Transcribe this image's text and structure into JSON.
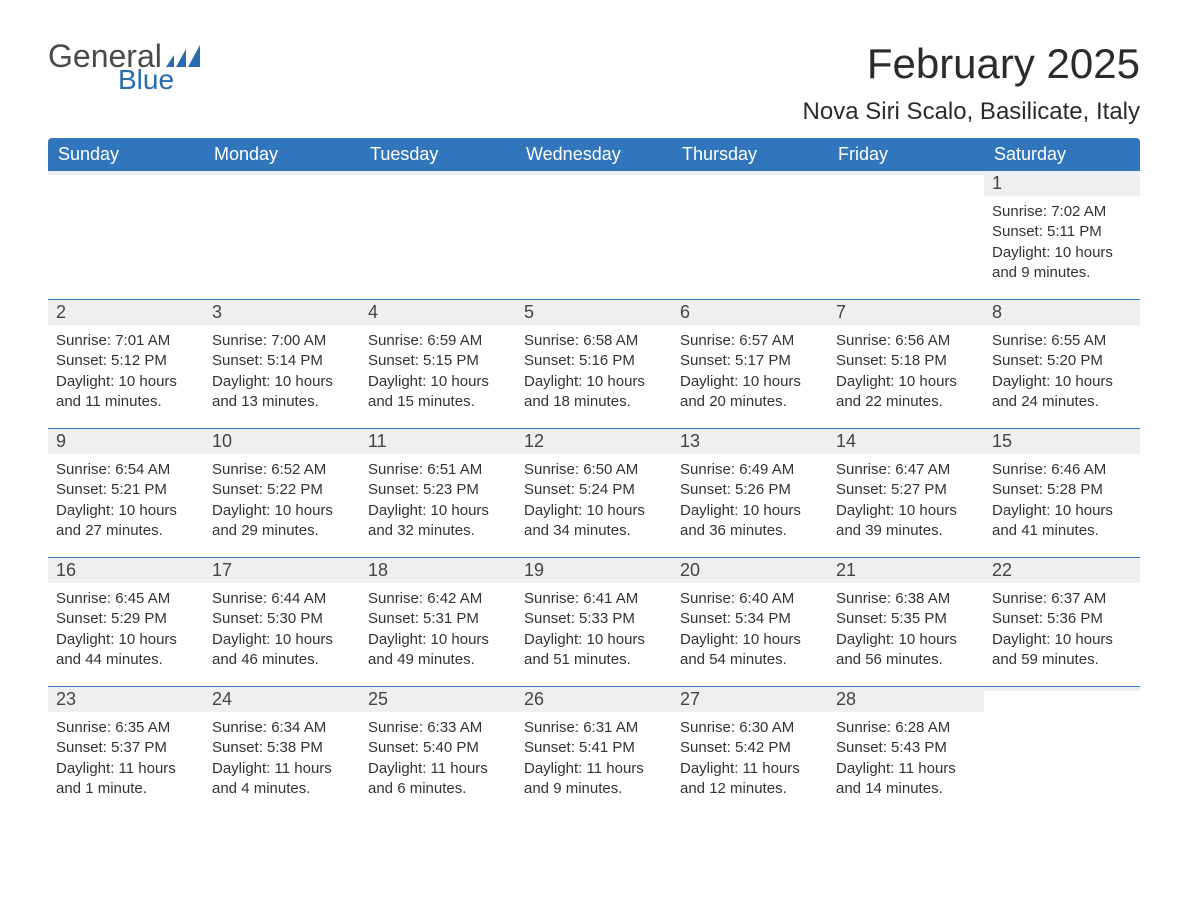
{
  "brand": {
    "text1": "General",
    "text2": "Blue",
    "icon_color": "#2a6bb0",
    "text1_color": "#4a4a4a",
    "text2_color": "#2a6bb0"
  },
  "title": "February 2025",
  "location": "Nova Siri Scalo, Basilicate, Italy",
  "colors": {
    "header_bg": "#3176bd",
    "header_text": "#ffffff",
    "row_border": "#3176bd",
    "daynum_bg": "#efefef",
    "body_text": "#333333",
    "page_bg": "#ffffff"
  },
  "day_labels": [
    "Sunday",
    "Monday",
    "Tuesday",
    "Wednesday",
    "Thursday",
    "Friday",
    "Saturday"
  ],
  "weeks": [
    [
      {
        "empty": true
      },
      {
        "empty": true
      },
      {
        "empty": true
      },
      {
        "empty": true
      },
      {
        "empty": true
      },
      {
        "empty": true
      },
      {
        "n": "1",
        "sr": "Sunrise: 7:02 AM",
        "ss": "Sunset: 5:11 PM",
        "dl1": "Daylight: 10 hours",
        "dl2": "and 9 minutes."
      }
    ],
    [
      {
        "n": "2",
        "sr": "Sunrise: 7:01 AM",
        "ss": "Sunset: 5:12 PM",
        "dl1": "Daylight: 10 hours",
        "dl2": "and 11 minutes."
      },
      {
        "n": "3",
        "sr": "Sunrise: 7:00 AM",
        "ss": "Sunset: 5:14 PM",
        "dl1": "Daylight: 10 hours",
        "dl2": "and 13 minutes."
      },
      {
        "n": "4",
        "sr": "Sunrise: 6:59 AM",
        "ss": "Sunset: 5:15 PM",
        "dl1": "Daylight: 10 hours",
        "dl2": "and 15 minutes."
      },
      {
        "n": "5",
        "sr": "Sunrise: 6:58 AM",
        "ss": "Sunset: 5:16 PM",
        "dl1": "Daylight: 10 hours",
        "dl2": "and 18 minutes."
      },
      {
        "n": "6",
        "sr": "Sunrise: 6:57 AM",
        "ss": "Sunset: 5:17 PM",
        "dl1": "Daylight: 10 hours",
        "dl2": "and 20 minutes."
      },
      {
        "n": "7",
        "sr": "Sunrise: 6:56 AM",
        "ss": "Sunset: 5:18 PM",
        "dl1": "Daylight: 10 hours",
        "dl2": "and 22 minutes."
      },
      {
        "n": "8",
        "sr": "Sunrise: 6:55 AM",
        "ss": "Sunset: 5:20 PM",
        "dl1": "Daylight: 10 hours",
        "dl2": "and 24 minutes."
      }
    ],
    [
      {
        "n": "9",
        "sr": "Sunrise: 6:54 AM",
        "ss": "Sunset: 5:21 PM",
        "dl1": "Daylight: 10 hours",
        "dl2": "and 27 minutes."
      },
      {
        "n": "10",
        "sr": "Sunrise: 6:52 AM",
        "ss": "Sunset: 5:22 PM",
        "dl1": "Daylight: 10 hours",
        "dl2": "and 29 minutes."
      },
      {
        "n": "11",
        "sr": "Sunrise: 6:51 AM",
        "ss": "Sunset: 5:23 PM",
        "dl1": "Daylight: 10 hours",
        "dl2": "and 32 minutes."
      },
      {
        "n": "12",
        "sr": "Sunrise: 6:50 AM",
        "ss": "Sunset: 5:24 PM",
        "dl1": "Daylight: 10 hours",
        "dl2": "and 34 minutes."
      },
      {
        "n": "13",
        "sr": "Sunrise: 6:49 AM",
        "ss": "Sunset: 5:26 PM",
        "dl1": "Daylight: 10 hours",
        "dl2": "and 36 minutes."
      },
      {
        "n": "14",
        "sr": "Sunrise: 6:47 AM",
        "ss": "Sunset: 5:27 PM",
        "dl1": "Daylight: 10 hours",
        "dl2": "and 39 minutes."
      },
      {
        "n": "15",
        "sr": "Sunrise: 6:46 AM",
        "ss": "Sunset: 5:28 PM",
        "dl1": "Daylight: 10 hours",
        "dl2": "and 41 minutes."
      }
    ],
    [
      {
        "n": "16",
        "sr": "Sunrise: 6:45 AM",
        "ss": "Sunset: 5:29 PM",
        "dl1": "Daylight: 10 hours",
        "dl2": "and 44 minutes."
      },
      {
        "n": "17",
        "sr": "Sunrise: 6:44 AM",
        "ss": "Sunset: 5:30 PM",
        "dl1": "Daylight: 10 hours",
        "dl2": "and 46 minutes."
      },
      {
        "n": "18",
        "sr": "Sunrise: 6:42 AM",
        "ss": "Sunset: 5:31 PM",
        "dl1": "Daylight: 10 hours",
        "dl2": "and 49 minutes."
      },
      {
        "n": "19",
        "sr": "Sunrise: 6:41 AM",
        "ss": "Sunset: 5:33 PM",
        "dl1": "Daylight: 10 hours",
        "dl2": "and 51 minutes."
      },
      {
        "n": "20",
        "sr": "Sunrise: 6:40 AM",
        "ss": "Sunset: 5:34 PM",
        "dl1": "Daylight: 10 hours",
        "dl2": "and 54 minutes."
      },
      {
        "n": "21",
        "sr": "Sunrise: 6:38 AM",
        "ss": "Sunset: 5:35 PM",
        "dl1": "Daylight: 10 hours",
        "dl2": "and 56 minutes."
      },
      {
        "n": "22",
        "sr": "Sunrise: 6:37 AM",
        "ss": "Sunset: 5:36 PM",
        "dl1": "Daylight: 10 hours",
        "dl2": "and 59 minutes."
      }
    ],
    [
      {
        "n": "23",
        "sr": "Sunrise: 6:35 AM",
        "ss": "Sunset: 5:37 PM",
        "dl1": "Daylight: 11 hours",
        "dl2": "and 1 minute."
      },
      {
        "n": "24",
        "sr": "Sunrise: 6:34 AM",
        "ss": "Sunset: 5:38 PM",
        "dl1": "Daylight: 11 hours",
        "dl2": "and 4 minutes."
      },
      {
        "n": "25",
        "sr": "Sunrise: 6:33 AM",
        "ss": "Sunset: 5:40 PM",
        "dl1": "Daylight: 11 hours",
        "dl2": "and 6 minutes."
      },
      {
        "n": "26",
        "sr": "Sunrise: 6:31 AM",
        "ss": "Sunset: 5:41 PM",
        "dl1": "Daylight: 11 hours",
        "dl2": "and 9 minutes."
      },
      {
        "n": "27",
        "sr": "Sunrise: 6:30 AM",
        "ss": "Sunset: 5:42 PM",
        "dl1": "Daylight: 11 hours",
        "dl2": "and 12 minutes."
      },
      {
        "n": "28",
        "sr": "Sunrise: 6:28 AM",
        "ss": "Sunset: 5:43 PM",
        "dl1": "Daylight: 11 hours",
        "dl2": "and 14 minutes."
      },
      {
        "empty": true
      }
    ]
  ]
}
